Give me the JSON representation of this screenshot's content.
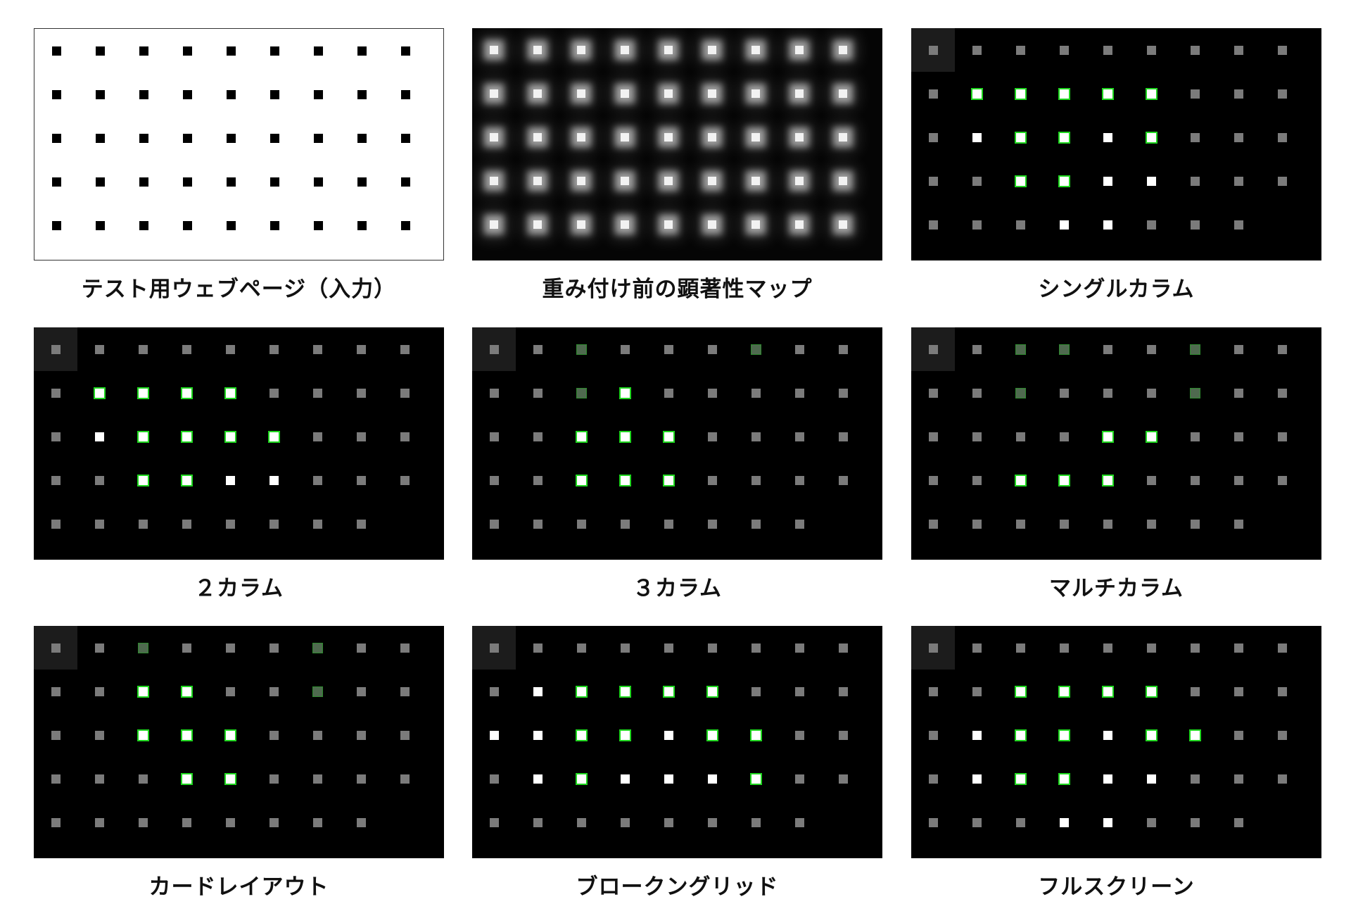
{
  "colors": {
    "accent_green": "#1fd61f",
    "background_dark": "#000000",
    "background_light": "#ffffff",
    "gray_dot": "#7b7b7b"
  },
  "panels": [
    {
      "caption": "テスト用ウェブページ（入力）",
      "theme": "white",
      "has_corner": false,
      "rows": [
        "bbbbbbbbb",
        "bbbbbbbbb",
        "bbbbbbbbb",
        "bbbbbbbbb",
        "bbbbbbbbb"
      ]
    },
    {
      "caption": "重み付け前の顕著性マップ",
      "theme": "glow",
      "has_corner": false,
      "rows": [
        "ooooooooo",
        "ooooooooo",
        "ooooooooo",
        "ooooooooo",
        "ooooooooo"
      ]
    },
    {
      "caption": "シングルカラム",
      "theme": "black",
      "has_corner": true,
      "rows": [
        "ggggggggg",
        "gGGGGGggg",
        "gwGGwGggg",
        "ggGGwwggg",
        "gggwwggg."
      ]
    },
    {
      "caption": "２カラム",
      "theme": "black",
      "has_corner": true,
      "rows": [
        "ggggggggg",
        "gGGGGgggg",
        "gwGGGGggg",
        "ggGGwwggg",
        "gggggggg."
      ]
    },
    {
      "caption": "３カラム",
      "theme": "black",
      "has_corner": true,
      "rows": [
        "ggdgggdgg",
        "ggdGggggg",
        "ggGGGgggg",
        "ggGGGgggg",
        "gggggggg."
      ]
    },
    {
      "caption": "マルチカラム",
      "theme": "black",
      "has_corner": true,
      "rows": [
        "ggddggdgg",
        "ggdgggdgg",
        "ggggGGggg",
        "ggGGGgggg",
        "gggggggg."
      ]
    },
    {
      "caption": "カードレイアウト",
      "theme": "black",
      "has_corner": true,
      "rows": [
        "ggdgggdgg",
        "ggGGggdgg",
        "ggGGGgggg",
        "gggGGgggg",
        "gggggggg."
      ]
    },
    {
      "caption": "ブロークングリッド",
      "theme": "black",
      "has_corner": true,
      "rows": [
        "ggggggggg",
        "gwGGGGggg",
        "wwGGwGGgg",
        "gwGwwwGgg",
        "gggggggg."
      ]
    },
    {
      "caption": "フルスクリーン",
      "theme": "black",
      "has_corner": true,
      "rows": [
        "ggggggggg",
        "ggGGGGggg",
        "gwGGwGGgg",
        "gwGGwwggg",
        "gggwwggg."
      ]
    }
  ]
}
